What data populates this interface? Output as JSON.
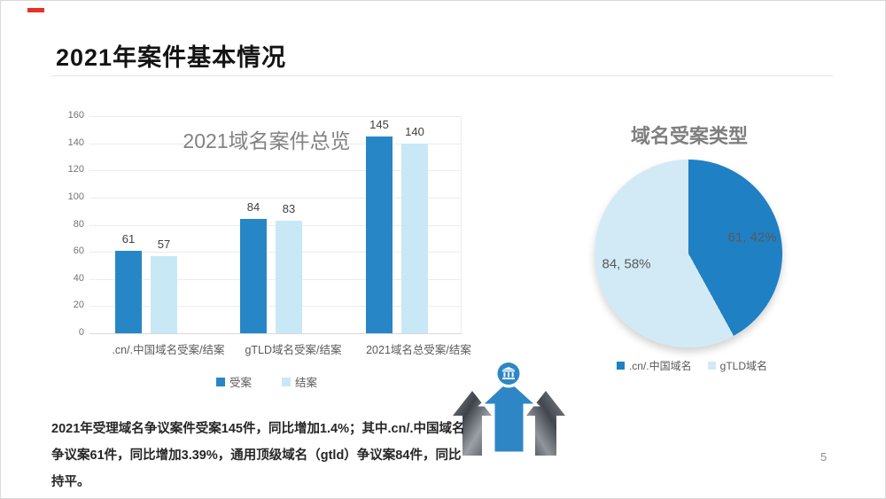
{
  "slide": {
    "title": "2021年案件基本情况",
    "page_number": "5",
    "accent_color": "#e8312a"
  },
  "summary": {
    "text": "2021年受理域名争议案件受案145件，同比增加1.4%；其中.cn/.中国域名争议案61件，同比增加3.39%，通用顶级域名（gtld）争议案84件，同比持平。"
  },
  "colors": {
    "series_dark_blue": "#2787c6",
    "series_light_blue": "#c9e8f6",
    "pie_dark_blue": "#2080c4",
    "pie_light_blue": "#d2eaf6",
    "arrow_blue": "#2e86c5",
    "chart_title_gray": "#7f7f7f",
    "label_gray": "#595959"
  },
  "chart_data": [
    {
      "type": "bar",
      "title": "2021域名案件总览",
      "categories": [
        ".cn/.中国域名受案/结案",
        "gTLD域名受案/结案",
        "2021域名总受案/结案"
      ],
      "series": [
        {
          "name": "受案",
          "values": [
            61,
            84,
            145
          ],
          "color": "#2787c6"
        },
        {
          "name": "结案",
          "values": [
            57,
            83,
            140
          ],
          "color": "#c9e8f6"
        }
      ],
      "ylim": [
        0,
        160
      ],
      "y_ticks": [
        0,
        20,
        40,
        60,
        80,
        100,
        120,
        140,
        160
      ],
      "grid": true,
      "legend_position": "bottom"
    },
    {
      "type": "pie",
      "title": "域名受案类型",
      "slices": [
        {
          "label": ".cn/.中国域名",
          "value": 61,
          "percent": 42,
          "data_label": "61, 42%",
          "color": "#2080c4"
        },
        {
          "label": "gTLD域名",
          "value": 84,
          "percent": 58,
          "data_label": "84, 58%",
          "color": "#d2eaf6"
        }
      ],
      "start_angle_deg": 0,
      "direction": "clockwise",
      "legend_position": "bottom"
    }
  ]
}
